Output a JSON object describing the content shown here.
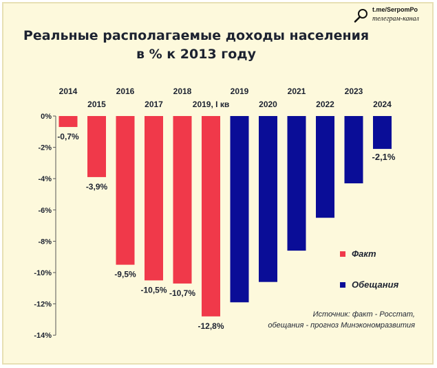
{
  "title": {
    "line1": "Реальные располагаемые доходы населения",
    "line2": "в % к 2013 году"
  },
  "brand": {
    "handle": "t.me/SerpomPo",
    "subtitle": "телеграм-канал"
  },
  "legend": [
    {
      "label": "Факт",
      "color": "#f0394a"
    },
    {
      "label": "Обещания",
      "color": "#0a0d97"
    }
  ],
  "source": {
    "line1": "Источник: факт - Росстат,",
    "line2": "обещания - прогноз Минэкономразвития"
  },
  "chart_data": {
    "type": "bar",
    "categories": [
      "2014",
      "2015",
      "2016",
      "2017",
      "2018",
      "2019, I кв",
      "2019",
      "2020",
      "2021",
      "2022",
      "2023",
      "2024"
    ],
    "series": [
      {
        "name": "Факт",
        "color": "#f0394a",
        "values": [
          -0.7,
          -3.9,
          -9.5,
          -10.5,
          -10.7,
          -12.8,
          null,
          null,
          null,
          null,
          null,
          null
        ]
      },
      {
        "name": "Обещания",
        "color": "#0a0d97",
        "values": [
          null,
          null,
          null,
          null,
          null,
          null,
          -11.9,
          -10.6,
          -8.6,
          -6.5,
          -4.3,
          -2.1
        ]
      }
    ],
    "data_labels": [
      "-0,7%",
      "-3,9%",
      "-9,5%",
      "-10,5%",
      "-10,7%",
      "-12,8%",
      "",
      "",
      "",
      "",
      "",
      "-2,1%"
    ],
    "y_ticks": [
      "0%",
      "-2%",
      "-4%",
      "-6%",
      "-8%",
      "-10%",
      "-12%",
      "-14%"
    ],
    "ylim": [
      -14,
      0
    ],
    "grid": false,
    "legend_position": "right"
  }
}
